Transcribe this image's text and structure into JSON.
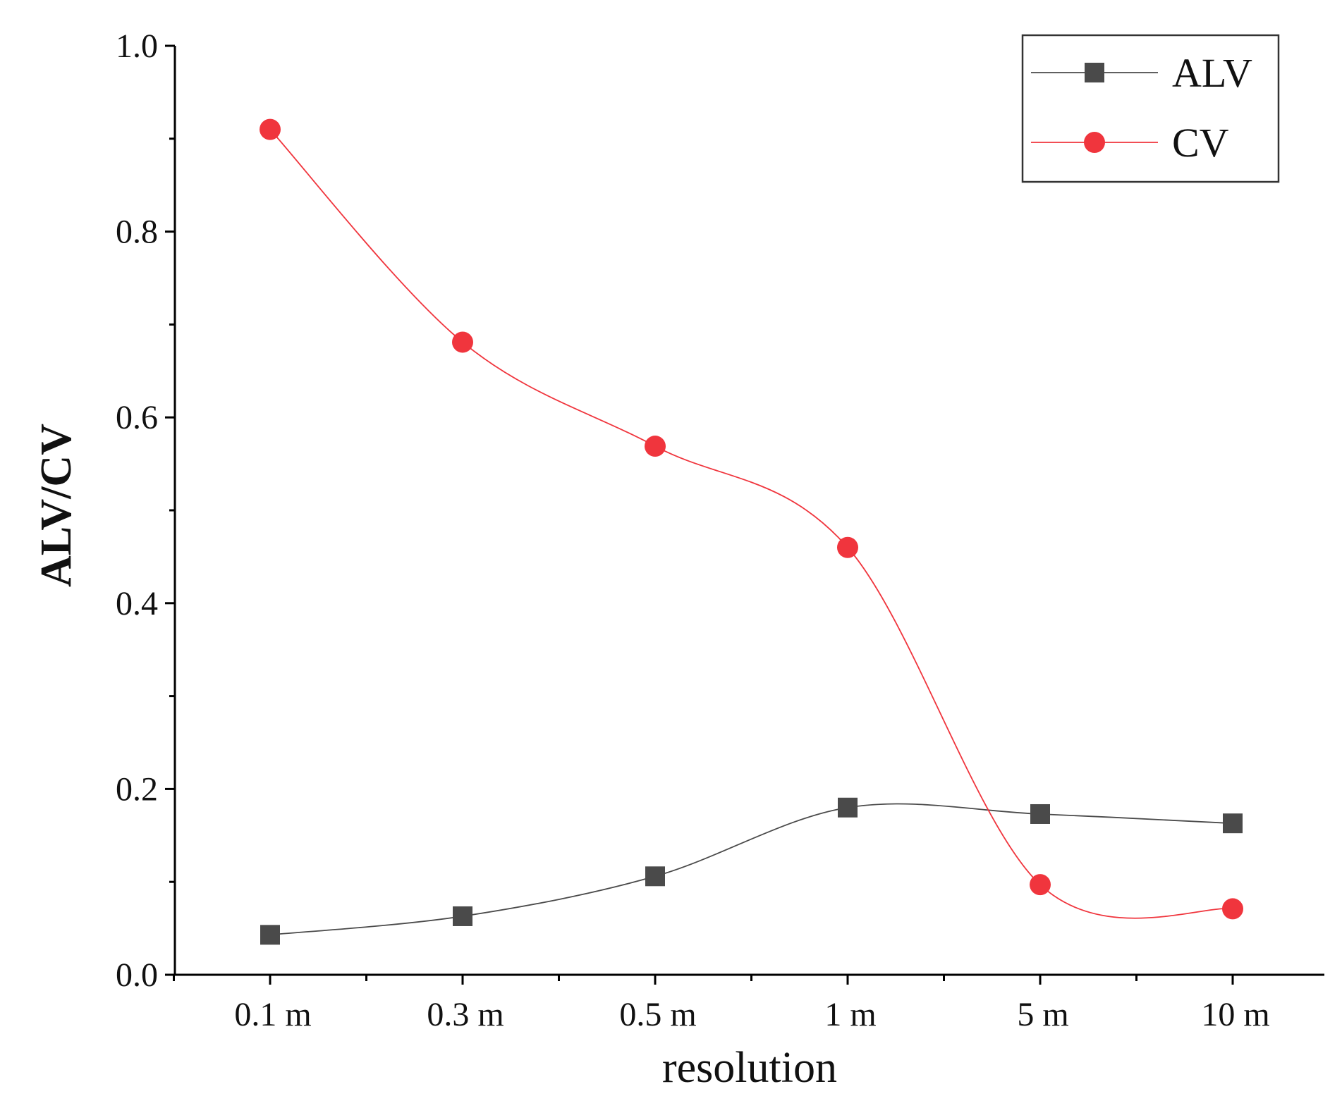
{
  "chart_data": {
    "type": "line",
    "title": "",
    "xlabel": "resolution",
    "ylabel": "ALV/CV",
    "categories": [
      "0.1 m",
      "0.3 m",
      "0.5 m",
      "1 m",
      "5 m",
      "10 m"
    ],
    "ylim": [
      0,
      1.0
    ],
    "yticks": [
      "0.0",
      "0.2",
      "0.4",
      "0.6",
      "0.8",
      "1.0"
    ],
    "grid": false,
    "legend_position": "top-right",
    "series": [
      {
        "name": "ALV",
        "marker": "square",
        "color": "#4a4a4a",
        "values": [
          0.043,
          0.063,
          0.106,
          0.18,
          0.173,
          0.163
        ]
      },
      {
        "name": "CV",
        "marker": "circle",
        "color": "#f0353d",
        "values": [
          0.91,
          0.681,
          0.569,
          0.46,
          0.097,
          0.071
        ]
      }
    ]
  }
}
